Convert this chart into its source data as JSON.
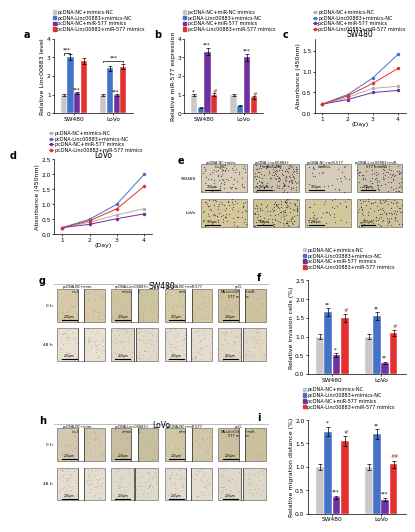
{
  "panel_a": {
    "SW480": [
      1.0,
      3.0,
      1.1,
      2.8
    ],
    "LoVo": [
      1.0,
      2.4,
      1.0,
      2.5
    ],
    "SW480_err": [
      0.05,
      0.15,
      0.06,
      0.15
    ],
    "LoVo_err": [
      0.05,
      0.12,
      0.05,
      0.12
    ],
    "ylabel": "Relative Linc00883 level",
    "ylim": [
      0,
      4
    ],
    "yticks": [
      0,
      1,
      2,
      3,
      4
    ]
  },
  "panel_b": {
    "SW480": [
      1.0,
      0.3,
      3.3,
      1.0
    ],
    "LoVo": [
      1.0,
      0.4,
      3.0,
      0.85
    ],
    "SW480_err": [
      0.05,
      0.03,
      0.2,
      0.08
    ],
    "LoVo_err": [
      0.05,
      0.03,
      0.18,
      0.07
    ],
    "ylabel": "Relative miR-577 expression",
    "ylim": [
      0,
      4
    ],
    "yticks": [
      0,
      1,
      2,
      3,
      4
    ]
  },
  "panel_c": {
    "title": "SW480",
    "days": [
      1,
      2,
      3,
      4
    ],
    "series_NC": [
      0.22,
      0.38,
      0.6,
      0.65
    ],
    "series_Linc": [
      0.22,
      0.45,
      0.85,
      1.42
    ],
    "series_miR": [
      0.22,
      0.33,
      0.5,
      0.55
    ],
    "series_both": [
      0.22,
      0.42,
      0.72,
      1.08
    ],
    "ylabel": "Absorbance (450nm)",
    "xlabel": "(Day)",
    "ylim": [
      0,
      1.8
    ],
    "yticks": [
      0.0,
      0.5,
      1.0,
      1.5
    ]
  },
  "panel_d": {
    "title": "LoVo",
    "days": [
      1,
      2,
      3,
      4
    ],
    "series_NC": [
      0.22,
      0.4,
      0.65,
      0.85
    ],
    "series_Linc": [
      0.22,
      0.5,
      1.0,
      2.0
    ],
    "series_miR": [
      0.22,
      0.33,
      0.52,
      0.68
    ],
    "series_both": [
      0.22,
      0.45,
      0.85,
      1.6
    ],
    "ylabel": "Absorbance (450nm)",
    "xlabel": "(Day)",
    "ylim": [
      0,
      2.5
    ],
    "yticks": [
      0.0,
      0.5,
      1.0,
      1.5,
      2.0,
      2.5
    ]
  },
  "panel_f": {
    "SW480": [
      1.0,
      1.65,
      0.5,
      1.5
    ],
    "LoVo": [
      1.0,
      1.55,
      0.3,
      1.1
    ],
    "SW480_err": [
      0.06,
      0.1,
      0.05,
      0.1
    ],
    "LoVo_err": [
      0.06,
      0.1,
      0.03,
      0.08
    ],
    "ylabel": "Relative invasion cells (%)",
    "ylim": [
      0,
      2.5
    ],
    "yticks": [
      0.0,
      0.5,
      1.0,
      1.5,
      2.0,
      2.5
    ]
  },
  "panel_i": {
    "SW480": [
      1.0,
      1.75,
      0.35,
      1.55
    ],
    "LoVo": [
      1.0,
      1.7,
      0.3,
      1.05
    ],
    "SW480_err": [
      0.06,
      0.1,
      0.03,
      0.1
    ],
    "LoVo_err": [
      0.06,
      0.1,
      0.03,
      0.08
    ],
    "ylabel": "Relative migration distance (%)",
    "ylim": [
      0,
      2.0
    ],
    "yticks": [
      0.0,
      0.5,
      1.0,
      1.5,
      2.0
    ]
  },
  "legend_labels": [
    "pcDNA-NC+mimics-NC",
    "pcDNA-Linc00883+mimics-NC",
    "pcDNA-NC+miR-577 mimics",
    "pcDNA-Linc00883+miR-577 mimics"
  ],
  "legend_labels_b": [
    "pcDNA-NC+miR-NC mimics",
    "pcDNA-Linc00883+mimics-NC",
    "pcDNA-NC+miR-577 mimics",
    "pcDNA-Linc00883+miR-577 mimics"
  ],
  "bar_colors": [
    "#c8c8c8",
    "#4472c4",
    "#7030a0",
    "#e63030"
  ],
  "line_colors": [
    "#b0b0b0",
    "#4472c4",
    "#7030a0",
    "#e63030"
  ],
  "fig_bg": "#ffffff",
  "lfs": 4.5,
  "tfs": 4.2,
  "title_fs": 5.5,
  "leg_fs": 3.5,
  "panel_fs": 7
}
